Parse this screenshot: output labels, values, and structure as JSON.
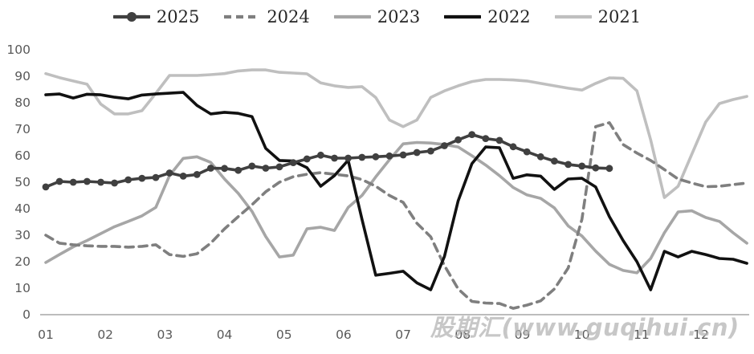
{
  "chart_data": {
    "type": "line",
    "title": "",
    "xlabel": "",
    "ylabel": "",
    "x_axis": {
      "tick_labels": [
        "01",
        "02",
        "03",
        "04",
        "05",
        "06",
        "07",
        "08",
        "09",
        "10",
        "11",
        "12"
      ],
      "points_per_month": 4.3333,
      "note": "weekly data points, series may extend past the 12 tick"
    },
    "y_axis": {
      "min": 0,
      "max": 100,
      "step": 10,
      "tick_labels": [
        "0",
        "10",
        "20",
        "30",
        "40",
        "50",
        "60",
        "70",
        "80",
        "90",
        "100"
      ]
    },
    "legend": {
      "position": "top",
      "entries": [
        "2025",
        "2024",
        "2023",
        "2022",
        "2021"
      ]
    },
    "watermark": "股期汇(www.guqihui.cn)",
    "axis_color": "#a6a6a6",
    "tick_text_color": "#595959",
    "series": [
      {
        "name": "2025",
        "color": "#404040",
        "style": "solid",
        "markers": true,
        "values": [
          48.2,
          50.3,
          50,
          50.3,
          50,
          49.7,
          50.9,
          51.5,
          51.8,
          53.5,
          52.3,
          52.9,
          55.3,
          55.2,
          54.5,
          56.1,
          55.3,
          55.8,
          57.4,
          58.8,
          60.2,
          59.1,
          59.1,
          59.4,
          59.6,
          59.9,
          60.3,
          61.2,
          61.8,
          63.8,
          66,
          68,
          66.5,
          65.8,
          63.4,
          61.5,
          59.6,
          58,
          56.7,
          56.1,
          55.4,
          55.2
        ]
      },
      {
        "name": "2024",
        "color": "#7f7f7f",
        "style": "dashed",
        "markers": false,
        "values": [
          30,
          27,
          26.4,
          26,
          25.8,
          25.8,
          25.5,
          25.8,
          26.4,
          22.7,
          22,
          23,
          27,
          32.4,
          37,
          41.5,
          46.4,
          50,
          52.1,
          53,
          53.6,
          53,
          52.4,
          51,
          48.5,
          45,
          42.4,
          34.5,
          29.4,
          18.5,
          9.7,
          5,
          4.4,
          4.2,
          2.4,
          3.6,
          5.2,
          9.7,
          17.6,
          36,
          71,
          72.5,
          64.2,
          61,
          58.2,
          54.8,
          51.2,
          49.7,
          48.3,
          48.5,
          49.1,
          49.7
        ]
      },
      {
        "name": "2023",
        "color": "#a6a6a6",
        "style": "solid",
        "markers": false,
        "values": [
          19.7,
          22.7,
          25.6,
          28,
          30.6,
          33.2,
          35.2,
          37.3,
          40.5,
          52.5,
          59,
          59.6,
          57.5,
          51.2,
          45.8,
          39,
          29.5,
          21.8,
          22.5,
          32.4,
          33,
          31.8,
          40.5,
          45,
          52,
          58.5,
          64.5,
          65,
          64.8,
          64.2,
          63.3,
          60,
          56.5,
          52.5,
          48,
          45.2,
          43.9,
          40.3,
          33.5,
          29.7,
          24,
          19,
          16.7,
          15.8,
          21.2,
          30.9,
          38.8,
          39.2,
          36.7,
          35.2,
          30.9,
          27
        ]
      },
      {
        "name": "2022",
        "color": "#111111",
        "style": "solid",
        "markers": false,
        "values": [
          83,
          83.3,
          81.8,
          83.2,
          83,
          82.1,
          81.5,
          82.9,
          83.3,
          83.6,
          83.9,
          79,
          75.8,
          76.4,
          76,
          74.8,
          62.8,
          58.2,
          58,
          55.5,
          48.5,
          52.5,
          58.3,
          36,
          14.9,
          15.6,
          16.4,
          12,
          9.4,
          22,
          43,
          57,
          63.3,
          63,
          51.5,
          52.8,
          52.3,
          47.3,
          51.2,
          51.5,
          48.2,
          37,
          28,
          20,
          9.4,
          23.9,
          21.8,
          23.9,
          22.7,
          21.2,
          20.9,
          19.4
        ]
      },
      {
        "name": "2021",
        "color": "#bfbfbf",
        "style": "solid",
        "markers": false,
        "values": [
          91,
          89.5,
          88.2,
          87,
          79.5,
          75.8,
          75.8,
          77,
          83.5,
          90.3,
          90.3,
          90.3,
          90.6,
          91,
          92,
          92.4,
          92.4,
          91.5,
          91.2,
          90.9,
          87.5,
          86.4,
          85.8,
          86.1,
          82,
          73.5,
          71,
          73.5,
          82,
          84.5,
          86.4,
          88,
          88.8,
          88.8,
          88.6,
          88.2,
          87.3,
          86.4,
          85.5,
          84.8,
          87.3,
          89.4,
          89.2,
          84.5,
          66,
          44.2,
          48.5,
          60.6,
          72.7,
          79.7,
          81.2,
          82.4
        ]
      }
    ]
  }
}
